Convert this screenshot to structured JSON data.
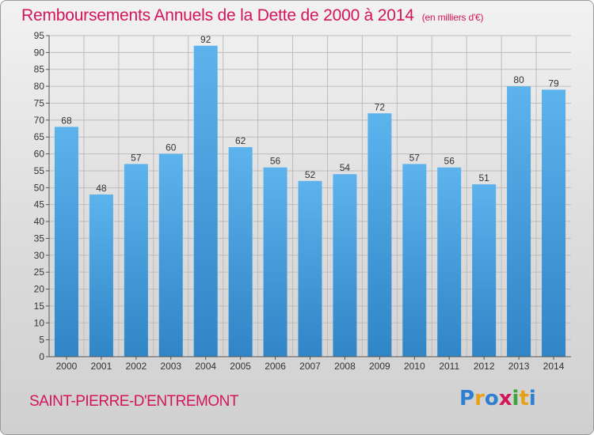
{
  "title": "Remboursements Annuels de la Dette de 2000 à 2014",
  "unit": "(en milliers d'€)",
  "commune": "SAINT-PIERRE-D'ENTREMONT",
  "logo": "Proxiti",
  "colors": {
    "accent": "#d4145a",
    "bar_top": "#5db3ec",
    "bar_bottom": "#2f85c6"
  },
  "chart_data": {
    "type": "bar",
    "title": "Remboursements Annuels de la Dette de 2000 à 2014",
    "categories": [
      "2000",
      "2001",
      "2002",
      "2003",
      "2004",
      "2005",
      "2006",
      "2007",
      "2008",
      "2009",
      "2010",
      "2011",
      "2012",
      "2013",
      "2014"
    ],
    "values": [
      68,
      48,
      57,
      60,
      92,
      62,
      56,
      52,
      54,
      72,
      57,
      56,
      51,
      80,
      79
    ],
    "ylim": [
      0,
      95
    ],
    "ytick_step": 5,
    "grid": true,
    "xlabel": "",
    "ylabel": ""
  }
}
